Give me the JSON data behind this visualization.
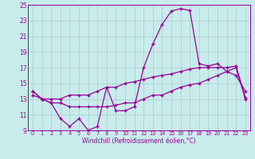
{
  "xlabel": "Windchill (Refroidissement éolien,°C)",
  "bg_color": "#c8ecec",
  "line_color": "#990099",
  "grid_color": "#aacccc",
  "xlim": [
    -0.5,
    23.5
  ],
  "ylim": [
    9,
    25
  ],
  "yticks": [
    9,
    11,
    13,
    15,
    17,
    19,
    21,
    23,
    25
  ],
  "xticks": [
    0,
    1,
    2,
    3,
    4,
    5,
    6,
    7,
    8,
    9,
    10,
    11,
    12,
    13,
    14,
    15,
    16,
    17,
    18,
    19,
    20,
    21,
    22,
    23
  ],
  "series1": [
    14.0,
    13.0,
    12.5,
    10.5,
    9.5,
    10.5,
    9.0,
    9.5,
    14.5,
    11.5,
    11.5,
    12.0,
    17.0,
    20.0,
    22.5,
    24.2,
    24.5,
    24.3,
    17.5,
    17.2,
    17.5,
    16.5,
    16.0,
    14.0
  ],
  "series2": [
    14.0,
    13.0,
    13.0,
    13.0,
    13.5,
    13.5,
    13.5,
    14.0,
    14.5,
    14.5,
    15.0,
    15.2,
    15.5,
    15.8,
    16.0,
    16.2,
    16.5,
    16.8,
    17.0,
    17.0,
    17.0,
    17.0,
    17.2,
    13.2
  ],
  "series3": [
    13.5,
    13.0,
    12.5,
    12.5,
    12.0,
    12.0,
    12.0,
    12.0,
    12.0,
    12.2,
    12.5,
    12.5,
    13.0,
    13.5,
    13.5,
    14.0,
    14.5,
    14.8,
    15.0,
    15.5,
    16.0,
    16.5,
    17.0,
    13.0
  ]
}
